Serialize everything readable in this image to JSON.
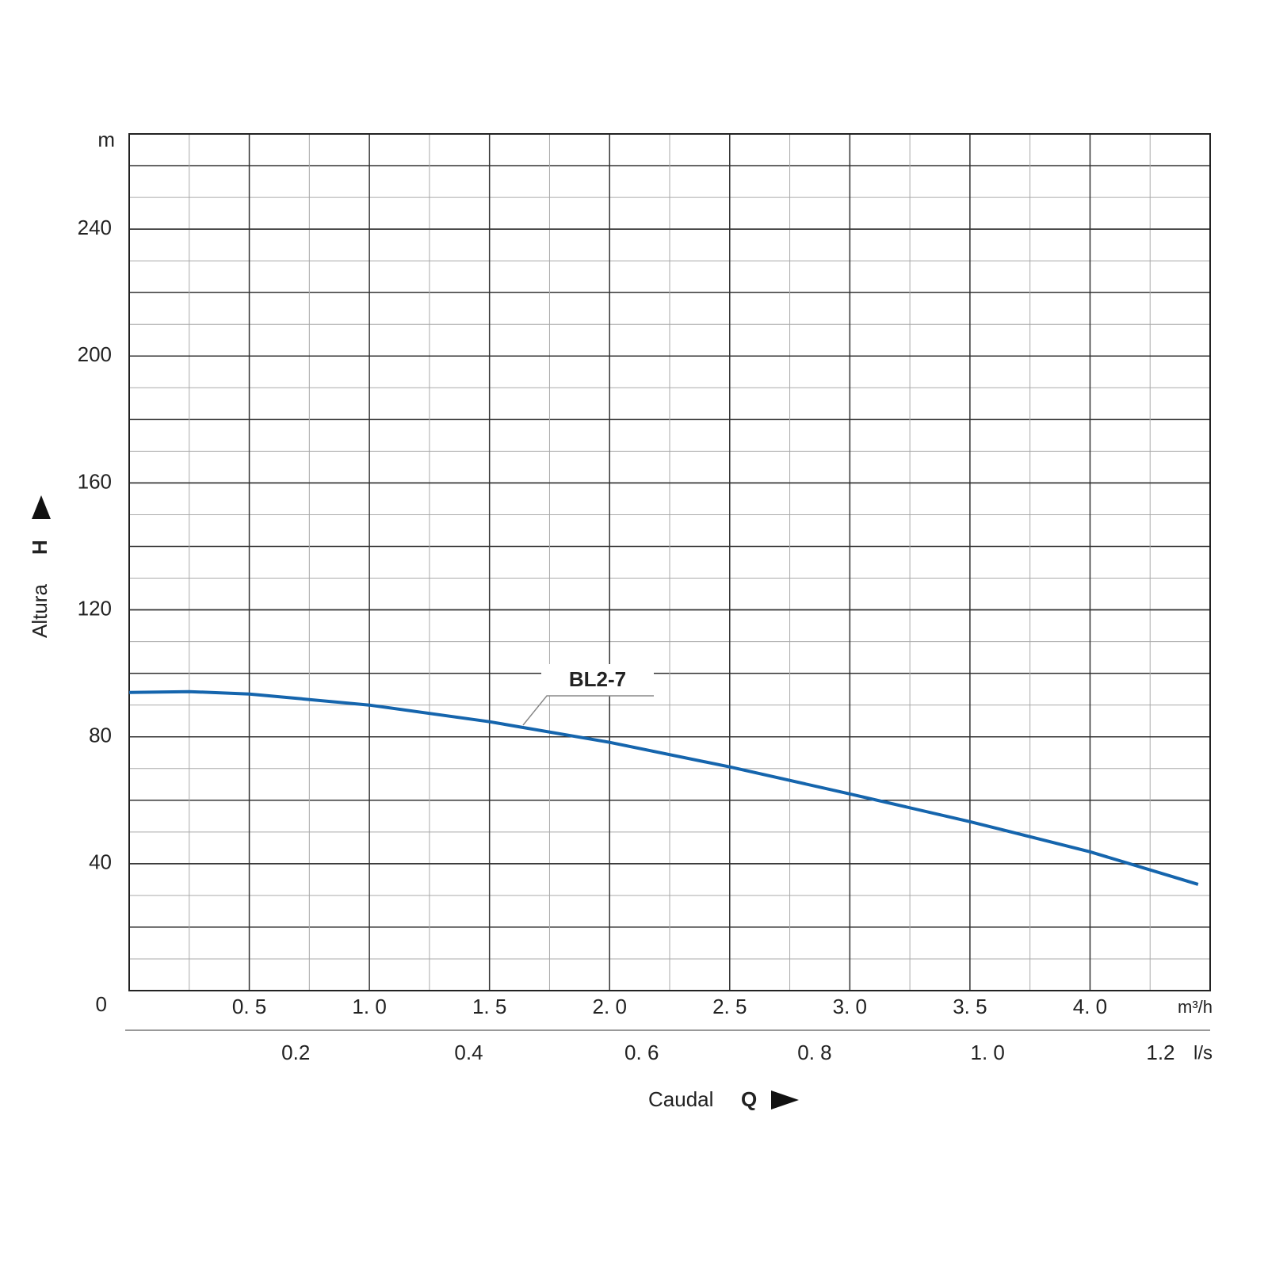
{
  "chart_data": {
    "type": "line",
    "x": [
      0,
      0.25,
      0.5,
      1.0,
      1.5,
      2.0,
      2.5,
      3.0,
      3.5,
      4.0,
      4.45
    ],
    "series": [
      {
        "name": "BL2-7",
        "color": "#1565ad",
        "values": [
          94,
          94.25,
          93.5,
          90,
          84.75,
          78.25,
          70.5,
          62,
          53.25,
          43.75,
          33.5
        ]
      }
    ],
    "xlim": [
      0,
      4.5
    ],
    "xticks": [
      {
        "value": 0.5,
        "label": "0. 5"
      },
      {
        "value": 1.0,
        "label": "1. 0"
      },
      {
        "value": 1.5,
        "label": "1. 5"
      },
      {
        "value": 2.0,
        "label": "2. 0"
      },
      {
        "value": 2.5,
        "label": "2. 5"
      },
      {
        "value": 3.0,
        "label": "3. 0"
      },
      {
        "value": 3.5,
        "label": "3. 5"
      },
      {
        "value": 4.0,
        "label": "4. 0"
      }
    ],
    "x_unit": "m³/h",
    "x2lim": [
      0,
      1.25
    ],
    "x2ticks": [
      0.2,
      0.4,
      {
        "value": 0.6,
        "label": "0. 6"
      },
      {
        "value": 0.8,
        "label": "0. 8"
      },
      {
        "value": 1.0,
        "label": "1. 0"
      },
      1.2
    ],
    "x2_unit": "l/s",
    "ylim": [
      0,
      270
    ],
    "yticks": [
      0,
      40,
      80,
      120,
      160,
      200,
      240
    ],
    "y_unit": "m",
    "ylabel": "Altura",
    "ylabel_symbol": "H",
    "xlabel": "Caudal",
    "xlabel_symbol": "Q",
    "grid": true
  }
}
